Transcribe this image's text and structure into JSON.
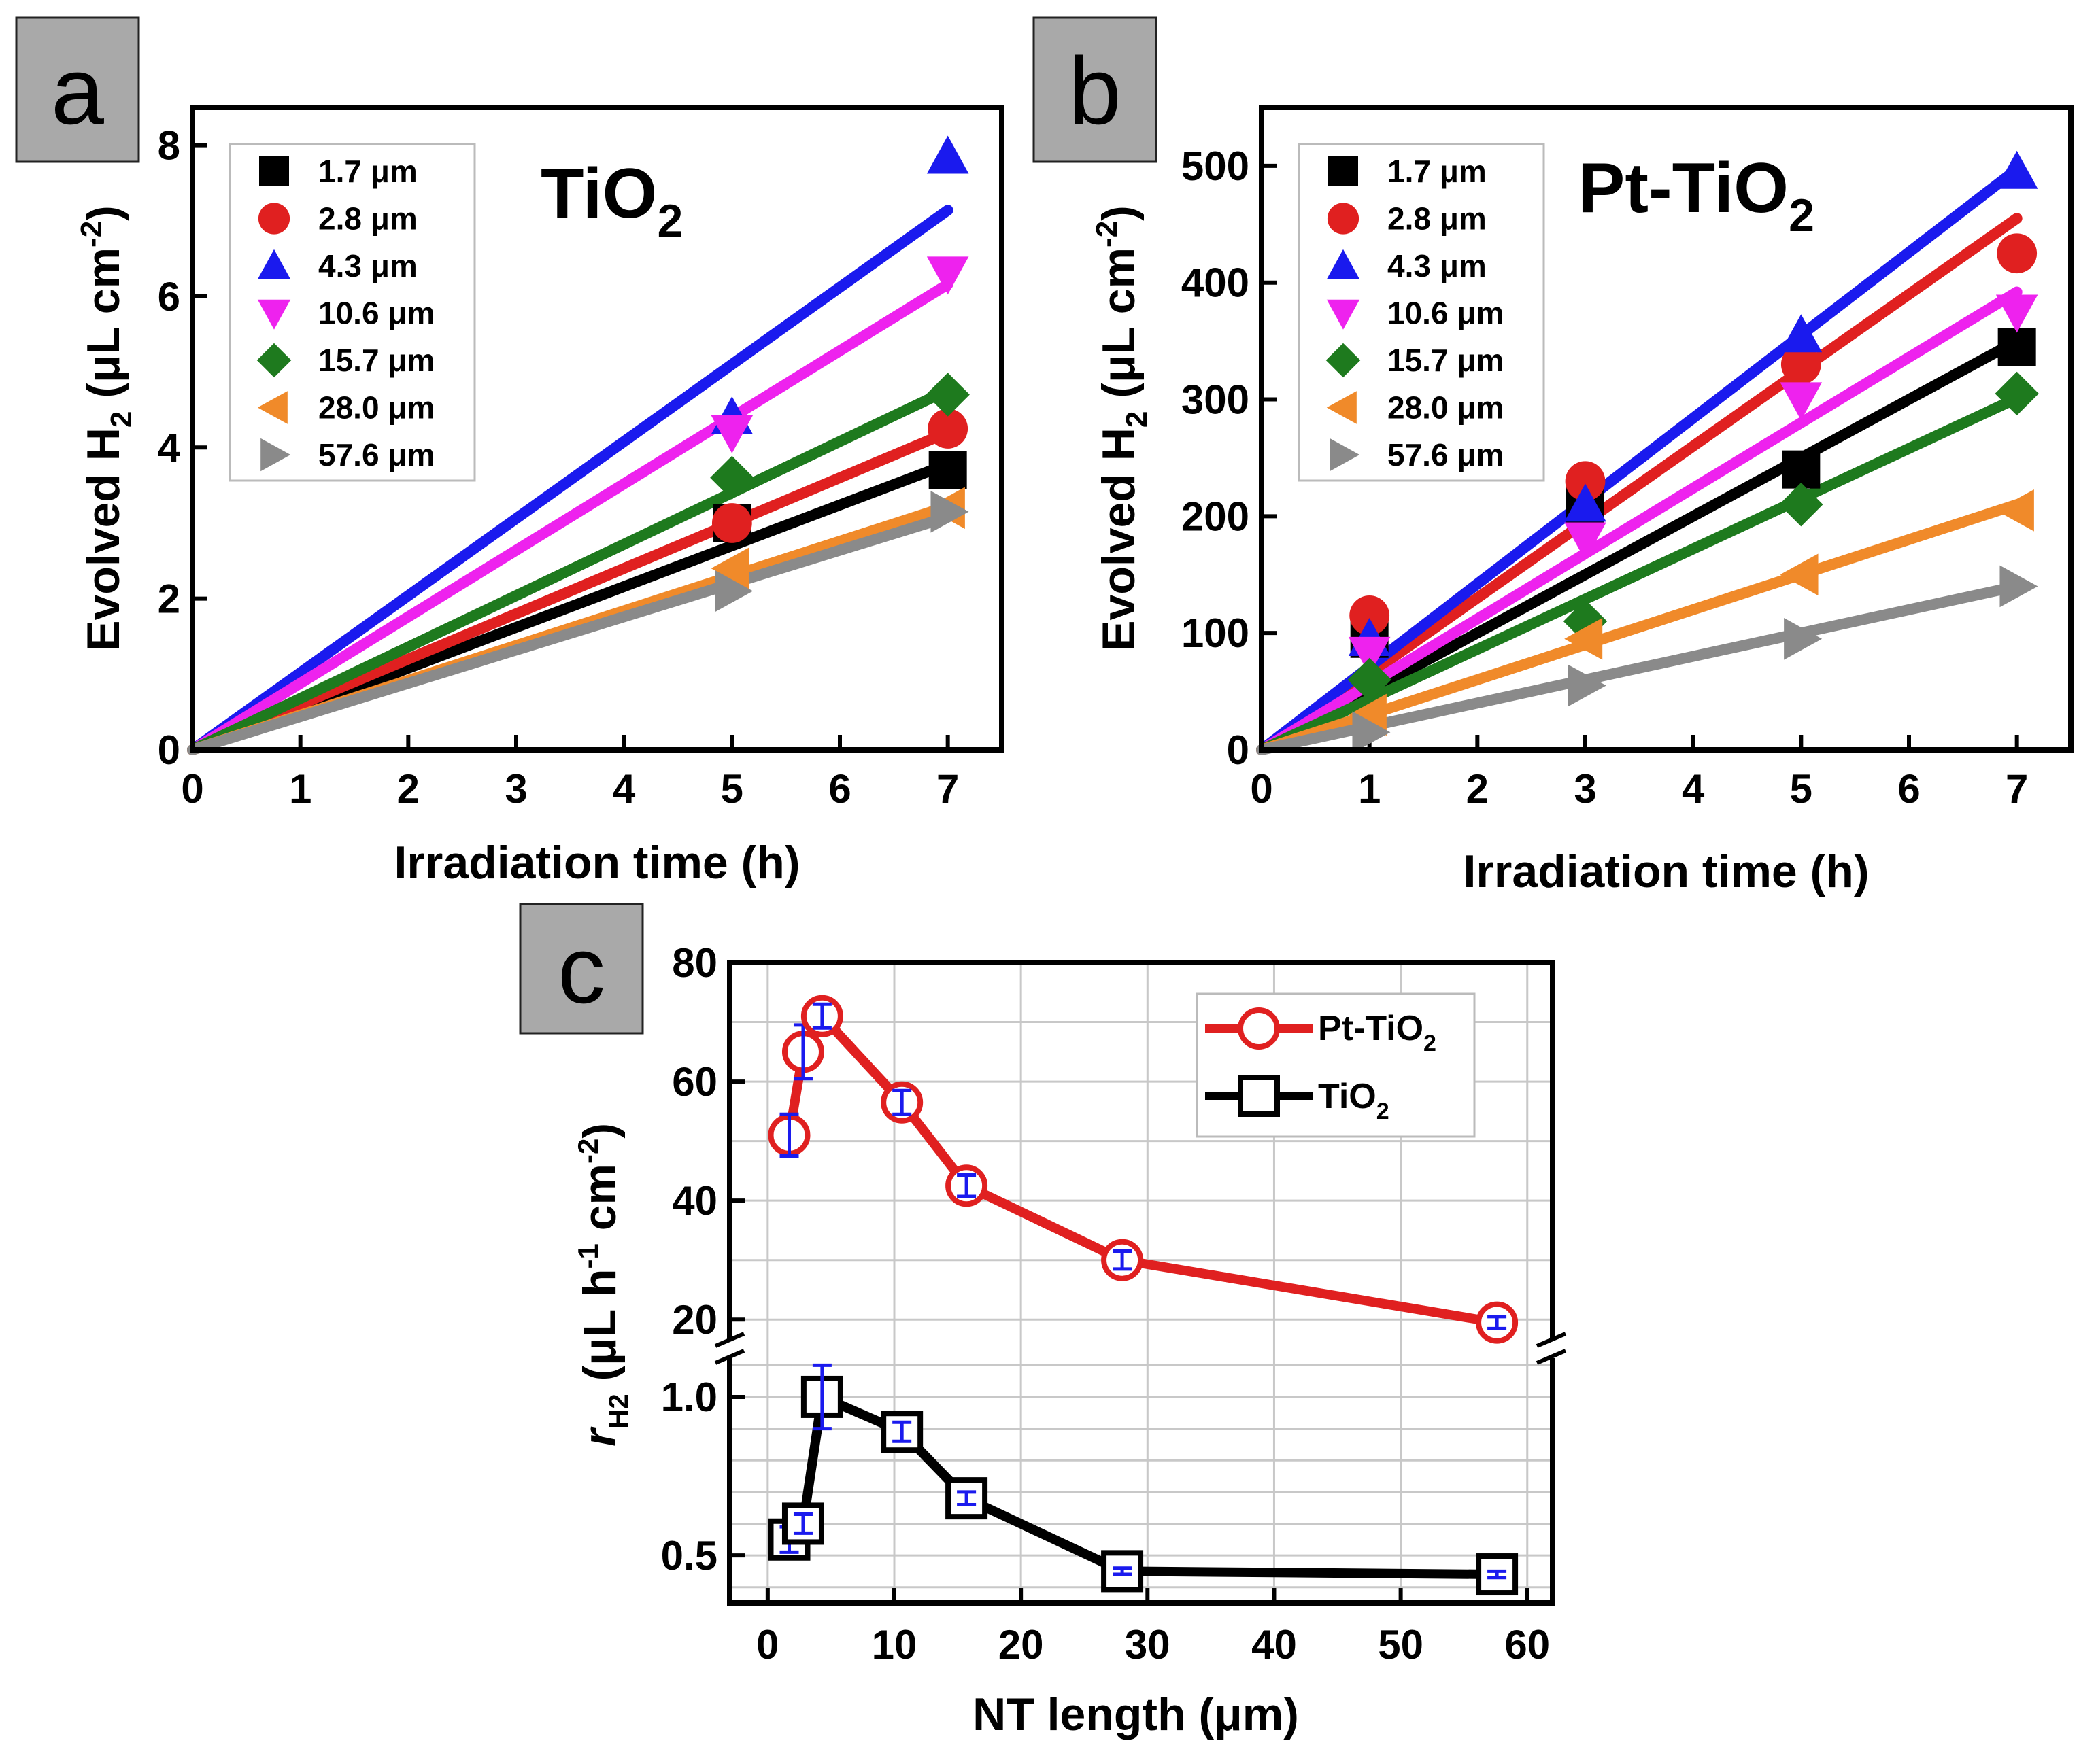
{
  "chart_data": [
    {
      "panel": "a",
      "type": "scatter",
      "title": "TiO2",
      "xlabel": "Irradiation time (h)",
      "ylabel": "Evolved H2 (μL cm-2)",
      "xlim": [
        0,
        7.5
      ],
      "ylim": [
        0,
        8.5
      ],
      "xticks": [
        0,
        1,
        2,
        3,
        4,
        5,
        6,
        7
      ],
      "yticks": [
        0,
        2,
        4,
        6,
        8
      ],
      "legend_position": "top-left",
      "series": [
        {
          "name": "1.7 μm",
          "color": "#000000",
          "marker": "square",
          "x": [
            0,
            5,
            7
          ],
          "y": [
            0,
            3.0,
            3.7
          ],
          "fit_slope": 0.54
        },
        {
          "name": "2.8 μm",
          "color": "#e02020",
          "marker": "circle",
          "x": [
            0,
            5,
            7
          ],
          "y": [
            0,
            3.0,
            4.25
          ],
          "fit_slope": 0.6
        },
        {
          "name": "4.3 μm",
          "color": "#1a1aee",
          "marker": "triangle-up",
          "x": [
            0,
            5,
            7
          ],
          "y": [
            0,
            4.4,
            7.85
          ],
          "fit_slope": 1.02
        },
        {
          "name": "10.6 μm",
          "color": "#ee22ee",
          "marker": "triangle-down",
          "x": [
            0,
            5,
            7
          ],
          "y": [
            0,
            4.2,
            6.3
          ],
          "fit_slope": 0.88
        },
        {
          "name": "15.7 μm",
          "color": "#1e7a1e",
          "marker": "diamond",
          "x": [
            0,
            5,
            7
          ],
          "y": [
            0,
            3.6,
            4.7
          ],
          "fit_slope": 0.68
        },
        {
          "name": "28.0 μm",
          "color": "#f08a2a",
          "marker": "triangle-left",
          "x": [
            0,
            5,
            7
          ],
          "y": [
            0,
            2.4,
            3.2
          ],
          "fit_slope": 0.46
        },
        {
          "name": "57.6 μm",
          "color": "#8a8a8a",
          "marker": "triangle-right",
          "x": [
            0,
            5,
            7
          ],
          "y": [
            0,
            2.1,
            3.15
          ],
          "fit_slope": 0.44
        }
      ]
    },
    {
      "panel": "b",
      "type": "scatter",
      "title": "Pt-TiO2",
      "xlabel": "Irradiation time (h)",
      "ylabel": "Evolved H2 (μL cm-2)",
      "xlim": [
        0,
        7.5
      ],
      "ylim": [
        0,
        550
      ],
      "xticks": [
        0,
        1,
        2,
        3,
        4,
        5,
        6,
        7
      ],
      "yticks": [
        0,
        100,
        200,
        300,
        400,
        500
      ],
      "legend_position": "top-left",
      "series": [
        {
          "name": "1.7 μm",
          "color": "#000000",
          "marker": "square",
          "x": [
            0,
            1,
            3,
            5,
            7
          ],
          "y": [
            0,
            95,
            210,
            240,
            345
          ],
          "fit_slope": 50
        },
        {
          "name": "2.8 μm",
          "color": "#e02020",
          "marker": "circle",
          "x": [
            0,
            1,
            3,
            5,
            7
          ],
          "y": [
            0,
            115,
            230,
            330,
            425
          ],
          "fit_slope": 65
        },
        {
          "name": "4.3 μm",
          "color": "#1a1aee",
          "marker": "triangle-up",
          "x": [
            0,
            1,
            3,
            5,
            7
          ],
          "y": [
            0,
            95,
            210,
            355,
            495
          ],
          "fit_slope": 71
        },
        {
          "name": "10.6 μm",
          "color": "#ee22ee",
          "marker": "triangle-down",
          "x": [
            0,
            1,
            3,
            5,
            7
          ],
          "y": [
            0,
            82,
            180,
            300,
            375
          ],
          "fit_slope": 56
        },
        {
          "name": "15.7 μm",
          "color": "#1e7a1e",
          "marker": "diamond",
          "x": [
            0,
            1,
            3,
            5,
            7
          ],
          "y": [
            0,
            60,
            110,
            210,
            305
          ],
          "fit_slope": 43
        },
        {
          "name": "28.0 μm",
          "color": "#f08a2a",
          "marker": "triangle-left",
          "x": [
            0,
            1,
            3,
            5,
            7
          ],
          "y": [
            0,
            30,
            95,
            150,
            205
          ],
          "fit_slope": 30
        },
        {
          "name": "57.6 μm",
          "color": "#8a8a8a",
          "marker": "triangle-right",
          "x": [
            0,
            1,
            3,
            5,
            7
          ],
          "y": [
            0,
            15,
            55,
            95,
            140
          ],
          "fit_slope": 20
        }
      ]
    },
    {
      "panel": "c",
      "type": "line",
      "xlabel": "NT length (μm)",
      "ylabel": "rH2 (μL h-1 cm-2)",
      "xlim": [
        -3,
        62
      ],
      "xticks": [
        0,
        10,
        20,
        30,
        40,
        50,
        60
      ],
      "broken_y_axis": true,
      "upper_ylim": [
        15,
        80
      ],
      "upper_yticks": [
        20,
        40,
        60,
        80
      ],
      "lower_ylim": [
        0.35,
        1.15
      ],
      "lower_yticks": [
        0.5,
        1.0
      ],
      "grid": true,
      "legend_position": "top-right",
      "series": [
        {
          "name": "Pt-TiO2",
          "color": "#e02020",
          "marker": "open-circle",
          "segment": "upper",
          "x": [
            1.7,
            2.8,
            4.3,
            10.6,
            15.7,
            28.0,
            57.6
          ],
          "y": [
            51,
            65,
            71,
            56.5,
            42.5,
            30,
            19.5
          ],
          "err": [
            3.5,
            4.5,
            2,
            2,
            1.8,
            1.5,
            1.0
          ]
        },
        {
          "name": "TiO2",
          "color": "#000000",
          "marker": "open-square",
          "segment": "lower",
          "x": [
            1.7,
            2.8,
            4.3,
            10.6,
            15.7,
            28.0,
            57.6
          ],
          "y": [
            0.55,
            0.6,
            1.0,
            0.89,
            0.68,
            0.45,
            0.44
          ],
          "err": [
            0.04,
            0.03,
            0.1,
            0.03,
            0.02,
            0.01,
            0.01
          ]
        }
      ]
    }
  ],
  "labels": {
    "panel_a": "a",
    "panel_b": "b",
    "panel_c": "c",
    "title_a_main": "TiO",
    "title_a_sub": "2",
    "title_b_main": "Pt-TiO",
    "title_b_sub": "2",
    "ylabel_ab_main": "Evolved H",
    "ylabel_ab_sub": "2",
    "ylabel_ab_unit": " (μL cm",
    "ylabel_ab_sup": "-2",
    "ylabel_ab_close": ")",
    "xlabel_ab": "Irradiation time (h)",
    "ylabel_c_r": "r",
    "ylabel_c_sub": "H2",
    "ylabel_c_unit": " (μL h",
    "ylabel_c_sup1": "-1",
    "ylabel_c_mid": " cm",
    "ylabel_c_sup2": "-2",
    "ylabel_c_close": ")",
    "xlabel_c": "NT length (μm)",
    "legend_c_pt_main": "Pt-TiO",
    "legend_c_pt_sub": "2",
    "legend_c_ti_main": "TiO",
    "legend_c_ti_sub": "2"
  }
}
